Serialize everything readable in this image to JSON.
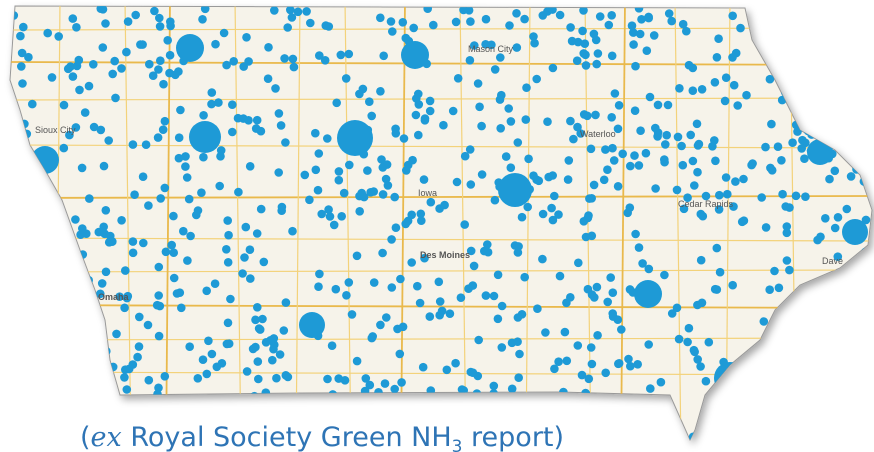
{
  "map": {
    "cities": [
      "Mason City",
      "Sioux City",
      "Waterloo",
      "Iowa",
      "Cedar Rapids",
      "Des Moines",
      "Omaha",
      "Dave"
    ]
  },
  "caption": {
    "open": "(",
    "italic": "ex",
    "text": " Royal Society Green NH",
    "subscript": "3",
    "close": " report)"
  }
}
